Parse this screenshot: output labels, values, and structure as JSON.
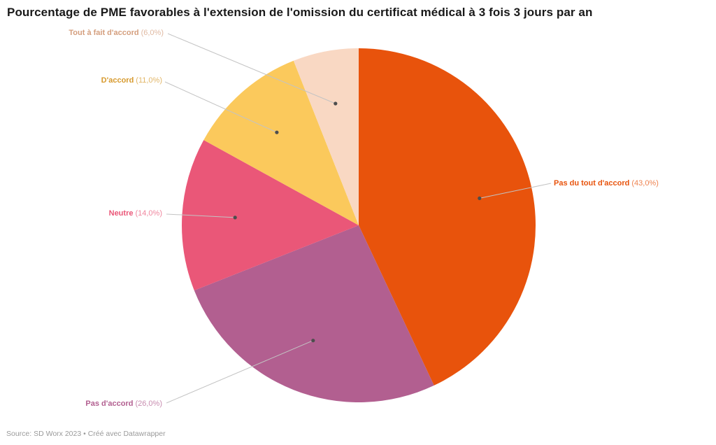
{
  "chart_data": {
    "type": "pie",
    "title": "Pourcentage de PME favorables à l'extension de l'omission du certificat médical à 3 fois 3 jours par an",
    "legend_position": "labels-with-leader-lines",
    "start_angle_deg": -90,
    "direction": "clockwise",
    "slices": [
      {
        "label": "Pas du tout d'accord",
        "value": 43.0,
        "value_label": "(43,0%)",
        "color": "#e8530c",
        "label_color": "#e8530c"
      },
      {
        "label": "Pas d'accord",
        "value": 26.0,
        "value_label": "(26,0%)",
        "color": "#b25f90",
        "label_color": "#b25f90"
      },
      {
        "label": "Neutre",
        "value": 14.0,
        "value_label": "(14,0%)",
        "color": "#ea5778",
        "label_color": "#ea5778"
      },
      {
        "label": "D'accord",
        "value": 11.0,
        "value_label": "(11,0%)",
        "color": "#fbc95c",
        "label_color": "#d79a2e"
      },
      {
        "label": "Tout à fait d'accord",
        "value": 6.0,
        "value_label": "(6,0%)",
        "color": "#f9d8c3",
        "label_color": "#d49e7d"
      }
    ]
  },
  "footer": {
    "source_line": "Source: SD Worx 2023 • Créé avec Datawrapper"
  }
}
